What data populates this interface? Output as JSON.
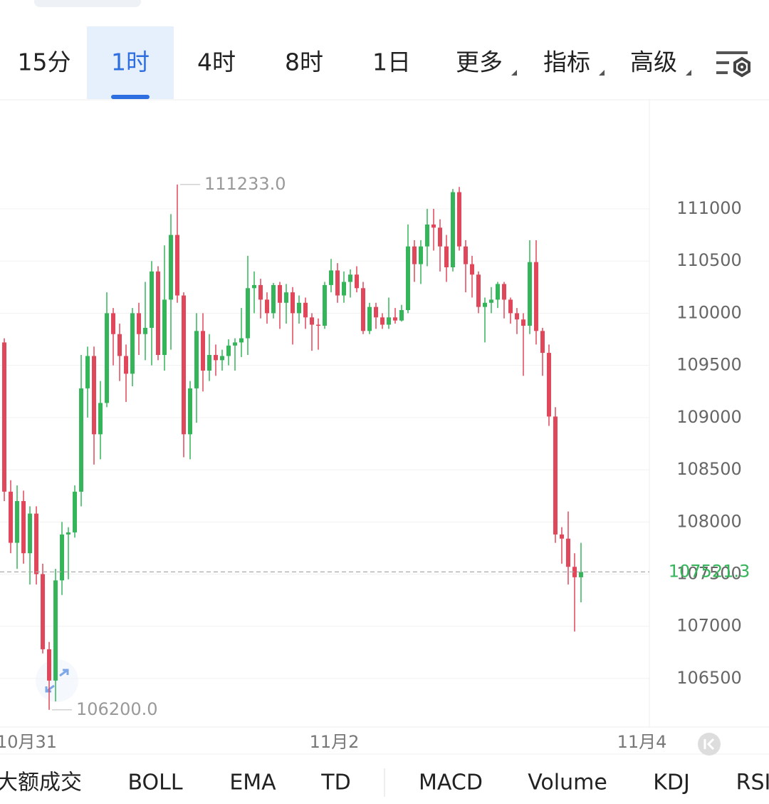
{
  "toolbar": {
    "tabs": [
      "15分",
      "1时",
      "4时",
      "8时",
      "1日",
      "更多",
      "指标",
      "高级"
    ],
    "active": 1
  },
  "chart_data": {
    "type": "candlestick",
    "up_color": "#35b55a",
    "down_color": "#e0475a",
    "x": [
      0,
      1,
      2,
      3,
      4,
      5,
      6,
      7,
      8,
      9,
      10,
      11,
      12,
      13,
      14,
      15,
      16,
      17,
      18,
      19,
      20,
      21,
      22,
      23,
      24,
      25,
      26,
      27,
      28,
      29,
      30,
      31,
      32,
      33,
      34,
      35,
      36,
      37,
      38,
      39,
      40,
      41,
      42,
      43,
      44,
      45,
      46,
      47,
      48,
      49,
      50,
      51,
      52,
      53,
      54,
      55,
      56,
      57,
      58,
      59,
      60,
      61,
      62,
      63,
      64,
      65,
      66,
      67,
      68,
      69,
      70,
      71,
      72,
      73,
      74,
      75,
      76,
      77,
      78,
      79,
      80,
      81,
      82,
      83,
      84,
      85,
      86,
      87,
      88,
      89,
      90
    ],
    "ohlc": [
      [
        109720,
        109760,
        108200,
        108290
      ],
      [
        108290,
        108400,
        107700,
        107800
      ],
      [
        107800,
        108350,
        107550,
        108200
      ],
      [
        108200,
        108300,
        107600,
        107700
      ],
      [
        107700,
        108150,
        107400,
        108080
      ],
      [
        108080,
        108150,
        107400,
        107500
      ],
      [
        107500,
        107600,
        106740,
        106780
      ],
      [
        106780,
        106850,
        106200,
        106480
      ],
      [
        106480,
        107550,
        106280,
        107440
      ],
      [
        107440,
        108000,
        107300,
        107880
      ],
      [
        107880,
        107950,
        107450,
        107900
      ],
      [
        107900,
        108350,
        107850,
        108290
      ],
      [
        108290,
        109600,
        108150,
        109280
      ],
      [
        109280,
        109680,
        109000,
        109590
      ],
      [
        109590,
        109680,
        108550,
        108840
      ],
      [
        108840,
        109350,
        108600,
        109140
      ],
      [
        109140,
        110200,
        109100,
        110000
      ],
      [
        110000,
        110050,
        109500,
        109800
      ],
      [
        109800,
        109900,
        109350,
        109590
      ],
      [
        109590,
        109700,
        109150,
        109420
      ],
      [
        109420,
        110050,
        109300,
        110000
      ],
      [
        110000,
        110100,
        109600,
        109800
      ],
      [
        109800,
        110300,
        109550,
        109860
      ],
      [
        109860,
        110500,
        109500,
        110400
      ],
      [
        110400,
        110450,
        109550,
        109600
      ],
      [
        109600,
        110650,
        109450,
        110130
      ],
      [
        110130,
        110950,
        109650,
        110750
      ],
      [
        110750,
        111233,
        110100,
        110170
      ],
      [
        110170,
        110200,
        108620,
        108840
      ],
      [
        108840,
        109350,
        108600,
        109280
      ],
      [
        109280,
        110000,
        108950,
        109830
      ],
      [
        109830,
        110000,
        109250,
        109450
      ],
      [
        109450,
        109800,
        109350,
        109600
      ],
      [
        109600,
        109700,
        109400,
        109550
      ],
      [
        109550,
        109650,
        109450,
        109590
      ],
      [
        109590,
        109750,
        109500,
        109690
      ],
      [
        109690,
        109760,
        109450,
        109720
      ],
      [
        109720,
        110050,
        109580,
        109760
      ],
      [
        109760,
        110550,
        109600,
        110240
      ],
      [
        110240,
        110400,
        110000,
        110270
      ],
      [
        110270,
        110330,
        109950,
        110130
      ],
      [
        110130,
        110200,
        109900,
        110000
      ],
      [
        110000,
        110290,
        109950,
        110270
      ],
      [
        110270,
        110300,
        109850,
        110100
      ],
      [
        110100,
        110280,
        109900,
        110200
      ],
      [
        110200,
        110250,
        109700,
        110000
      ],
      [
        110000,
        110170,
        109900,
        110100
      ],
      [
        110100,
        110150,
        109850,
        109960
      ],
      [
        109960,
        110000,
        109640,
        109890
      ],
      [
        109890,
        109950,
        109650,
        109880
      ],
      [
        109880,
        110300,
        109850,
        110270
      ],
      [
        110270,
        110520,
        110200,
        110410
      ],
      [
        110410,
        110480,
        110100,
        110170
      ],
      [
        110170,
        110400,
        110100,
        110300
      ],
      [
        110300,
        110420,
        110150,
        110370
      ],
      [
        110370,
        110450,
        110200,
        110240
      ],
      [
        110240,
        110300,
        109800,
        109830
      ],
      [
        109830,
        110100,
        109800,
        110060
      ],
      [
        110060,
        110100,
        109850,
        109960
      ],
      [
        109960,
        110000,
        109850,
        109890
      ],
      [
        109890,
        110150,
        109850,
        109960
      ],
      [
        109960,
        110050,
        109900,
        109930
      ],
      [
        109930,
        110080,
        109920,
        110030
      ],
      [
        110030,
        110850,
        110000,
        110640
      ],
      [
        110640,
        110700,
        110300,
        110470
      ],
      [
        110470,
        110700,
        110280,
        110640
      ],
      [
        110640,
        111000,
        110450,
        110850
      ],
      [
        110850,
        111000,
        110600,
        110820
      ],
      [
        110820,
        110900,
        110400,
        110640
      ],
      [
        110640,
        110750,
        110300,
        110440
      ],
      [
        110440,
        111190,
        110400,
        111160
      ],
      [
        111160,
        111210,
        110600,
        110640
      ],
      [
        110640,
        110700,
        110200,
        110470
      ],
      [
        110470,
        110550,
        110150,
        110370
      ],
      [
        110370,
        110400,
        110000,
        110060
      ],
      [
        110060,
        110150,
        109720,
        110100
      ],
      [
        110100,
        110250,
        110000,
        110130
      ],
      [
        110130,
        110300,
        110050,
        110280
      ],
      [
        110280,
        110300,
        109950,
        110130
      ],
      [
        110130,
        110150,
        109900,
        110000
      ],
      [
        110000,
        110050,
        109800,
        109940
      ],
      [
        109940,
        110000,
        109400,
        109880
      ],
      [
        109880,
        110700,
        109800,
        110490
      ],
      [
        110490,
        110700,
        109700,
        109830
      ],
      [
        109830,
        109860,
        109400,
        109620
      ],
      [
        109620,
        109700,
        108920,
        109010
      ],
      [
        109010,
        109100,
        107800,
        107880
      ],
      [
        107880,
        107950,
        107600,
        107840
      ],
      [
        107840,
        108100,
        107400,
        107570
      ],
      [
        107570,
        107700,
        106950,
        107470
      ],
      [
        107470,
        107800,
        107230,
        107521.3
      ]
    ],
    "xlim": [
      -0.67,
      100.67
    ],
    "xticks": [
      {
        "value": 3.5,
        "label": "10月31"
      },
      {
        "value": 51.5,
        "label": "11月2"
      },
      {
        "value": 99.5,
        "label": "11月4"
      }
    ],
    "ylim": [
      106035,
      112045
    ],
    "yticks": [
      106500,
      107000,
      107500,
      108000,
      108500,
      109000,
      109500,
      110000,
      110500,
      111000
    ],
    "grid": true,
    "last_price": 107521.3,
    "max_label": {
      "value": 111233,
      "label": "111233.0"
    },
    "min_label": {
      "value": 106200,
      "label": "106200.0"
    }
  },
  "indicator_tabs": [
    "大额成交",
    "BOLL",
    "EMA",
    "TD",
    "MACD",
    "Volume",
    "KDJ",
    "RSI"
  ]
}
